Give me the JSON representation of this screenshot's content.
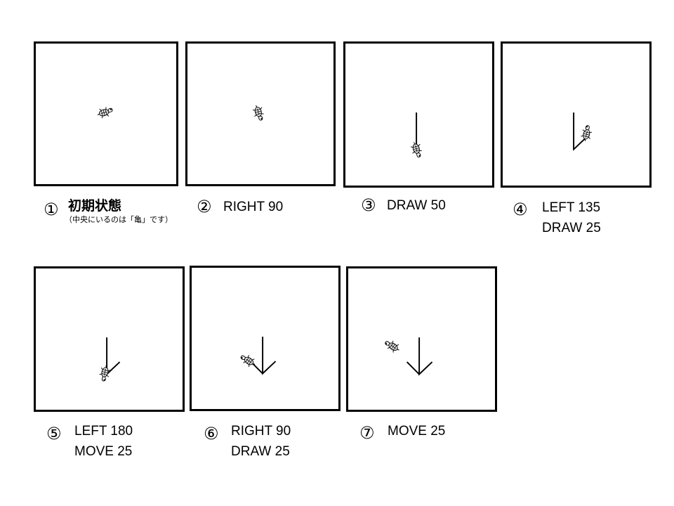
{
  "steps": [
    {
      "number": "①",
      "title": "初期状態",
      "note": "（中央にいるのは「亀」です）",
      "lines": []
    },
    {
      "number": "②",
      "lines": [
        "RIGHT 90"
      ]
    },
    {
      "number": "③",
      "lines": [
        "DRAW 50"
      ]
    },
    {
      "number": "④",
      "lines": [
        "LEFT 135",
        "DRAW 25"
      ]
    },
    {
      "number": "⑤",
      "lines": [
        "LEFT 180",
        "MOVE 25"
      ]
    },
    {
      "number": "⑥",
      "lines": [
        "RIGHT 90",
        "DRAW 25"
      ]
    },
    {
      "number": "⑦",
      "lines": [
        "MOVE 25"
      ]
    }
  ],
  "icons": {
    "turtle": "turtle-icon"
  }
}
